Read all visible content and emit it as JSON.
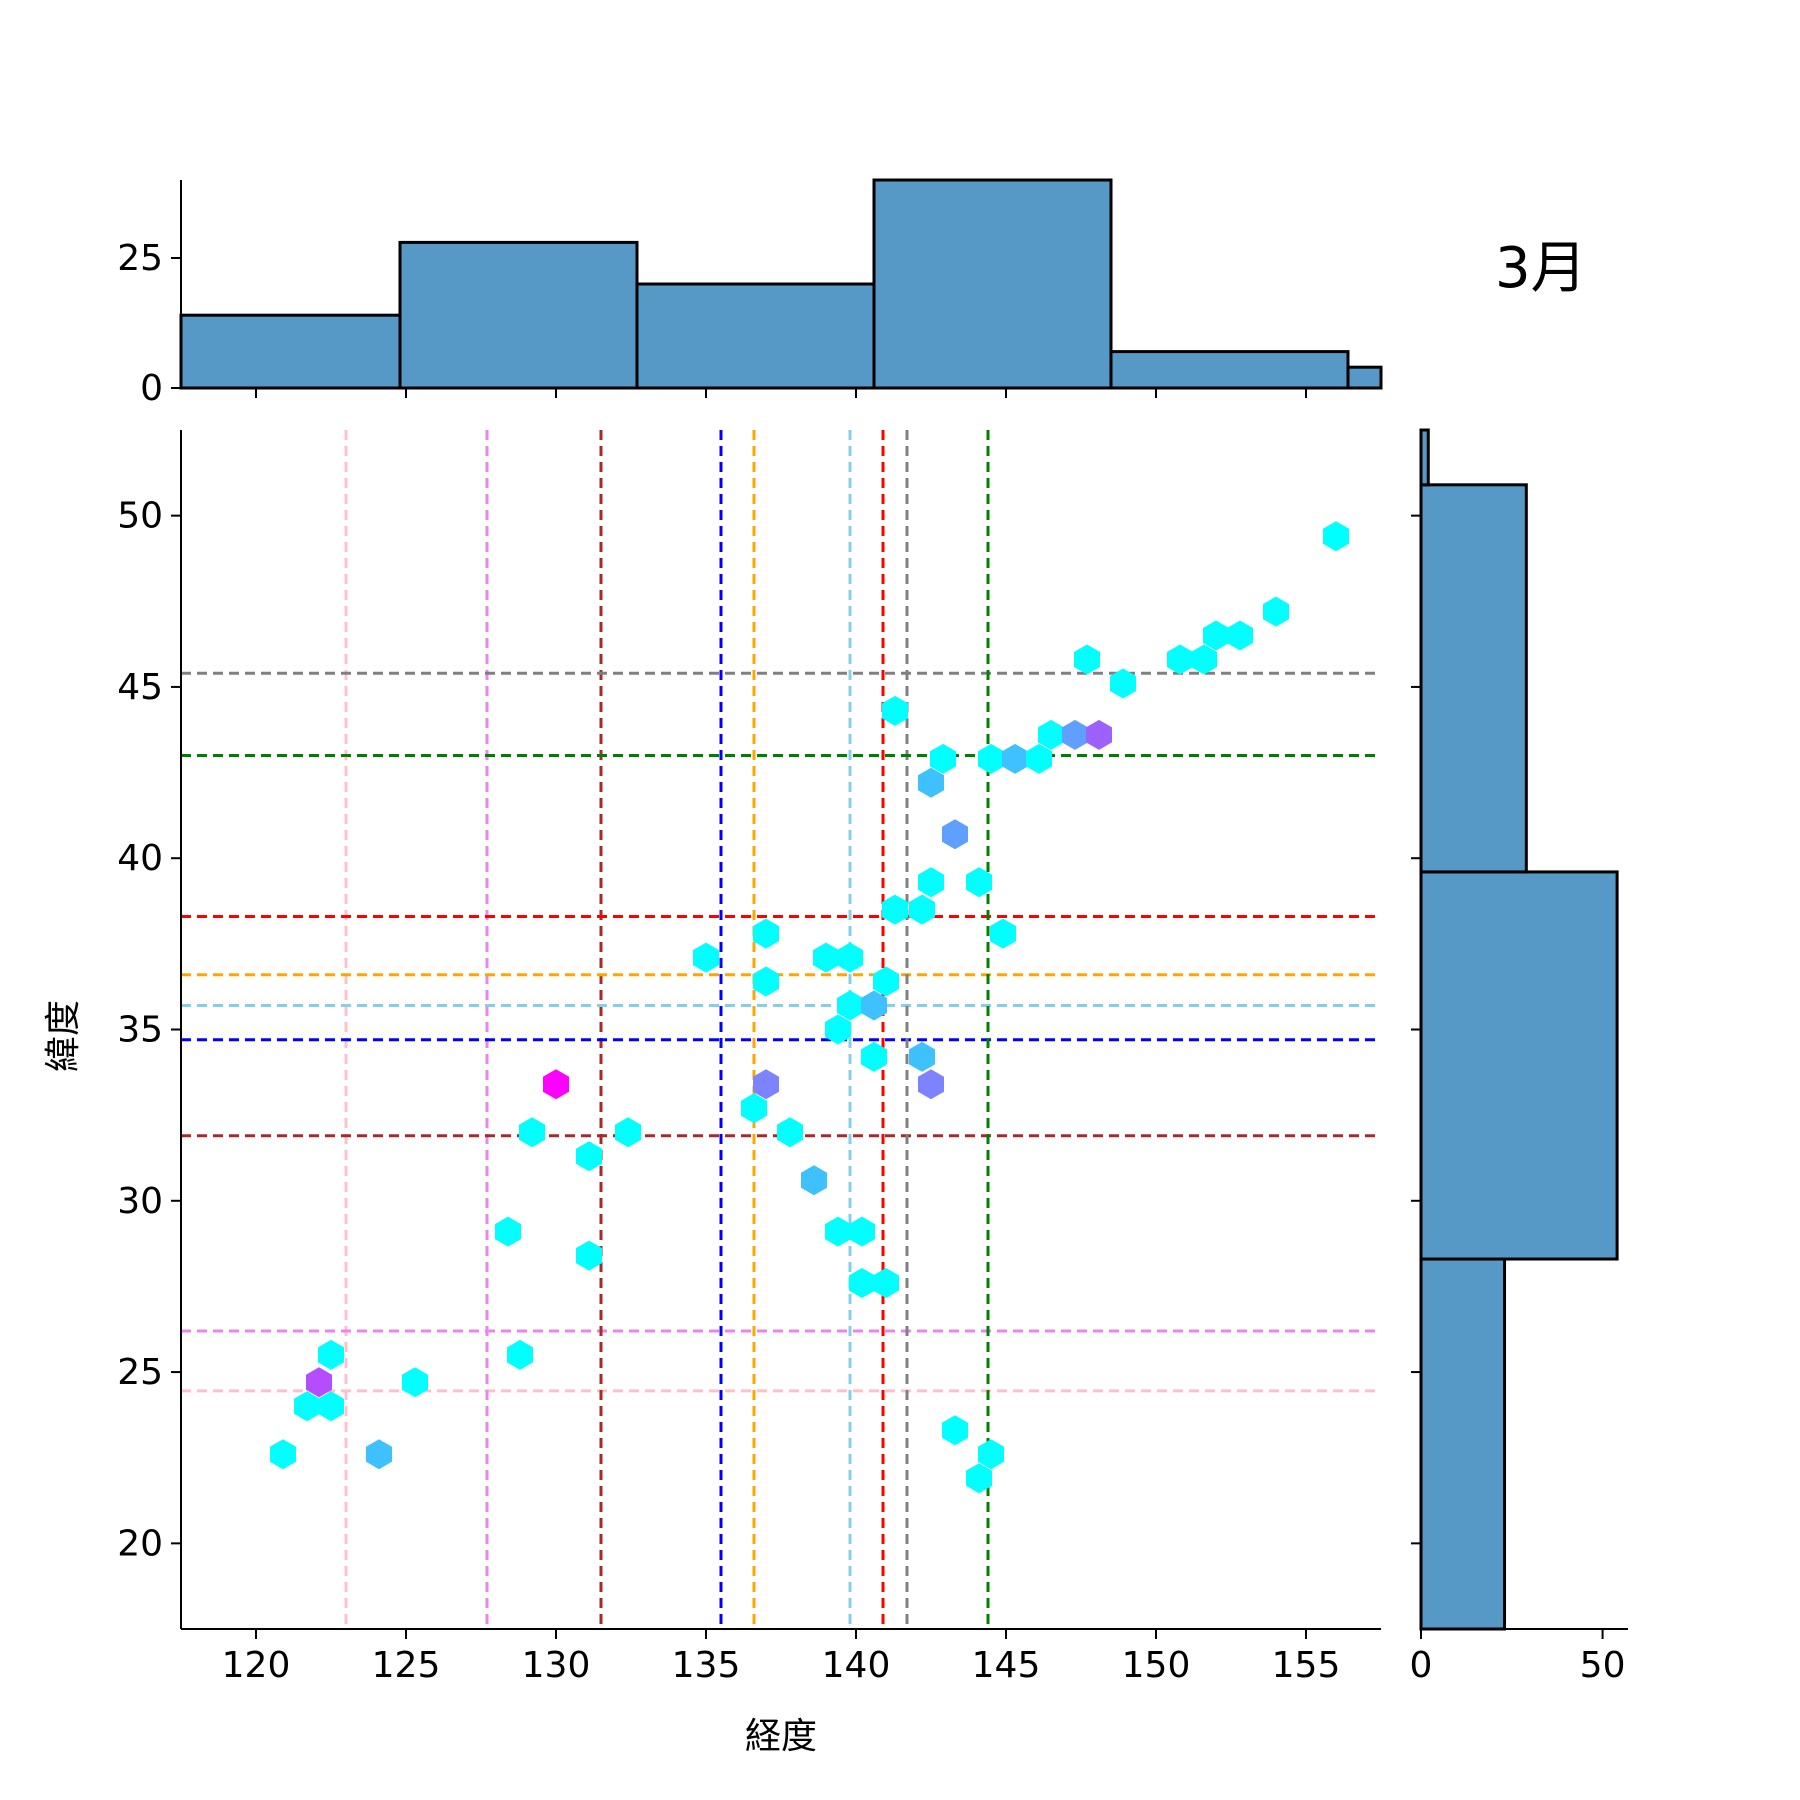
{
  "chart_data": {
    "type": "hexbin-jointplot",
    "annotation": "3月",
    "xlabel": "経度",
    "ylabel": "緯度",
    "xlim": [
      117.5,
      157.5
    ],
    "ylim": [
      17.5,
      52.5
    ],
    "xticks": [
      "120",
      "125",
      "130",
      "135",
      "140",
      "145",
      "150",
      "155"
    ],
    "yticks": [
      "20",
      "25",
      "30",
      "35",
      "40",
      "45",
      "50"
    ],
    "top_hist": {
      "yticks": [
        "0",
        "25"
      ],
      "ylim": [
        0,
        40
      ],
      "bars": [
        {
          "x0": 117.5,
          "x1": 124.8,
          "count": 14
        },
        {
          "x0": 124.8,
          "x1": 132.7,
          "count": 28
        },
        {
          "x0": 132.7,
          "x1": 140.6,
          "count": 20
        },
        {
          "x0": 140.6,
          "x1": 148.5,
          "count": 40
        },
        {
          "x0": 148.5,
          "x1": 156.4,
          "count": 7
        },
        {
          "x0": 156.4,
          "x1": 157.5,
          "count": 4
        }
      ]
    },
    "right_hist": {
      "xticks": [
        "0",
        "50"
      ],
      "xlim": [
        0,
        57
      ],
      "bars": [
        {
          "y0": 17.5,
          "y1": 28.3,
          "count": 23
        },
        {
          "y0": 28.3,
          "y1": 39.6,
          "count": 54
        },
        {
          "y0": 39.6,
          "y1": 50.9,
          "count": 29
        },
        {
          "y0": 50.9,
          "y1": 52.5,
          "count": 2
        }
      ]
    },
    "reference_lines": [
      {
        "lon": 123.0,
        "lat": 24.45,
        "color": "#ffc0cb"
      },
      {
        "lon": 127.7,
        "lat": 26.2,
        "color": "#ee82ee"
      },
      {
        "lon": 131.5,
        "lat": 31.9,
        "color": "#a52a2a"
      },
      {
        "lon": 135.5,
        "lat": 34.7,
        "color": "#0000ff"
      },
      {
        "lon": 136.6,
        "lat": 36.6,
        "color": "#ffa500"
      },
      {
        "lon": 139.8,
        "lat": 35.7,
        "color": "#87ceeb"
      },
      {
        "lon": 140.9,
        "lat": 38.3,
        "color": "#ff0000"
      },
      {
        "lon": 141.7,
        "lat": 45.4,
        "color": "#808080"
      },
      {
        "lon": 144.4,
        "lat": 43.0,
        "color": "#008000"
      }
    ],
    "hexbins": [
      {
        "lon": 120.9,
        "lat": 22.6,
        "color": "#00ffff"
      },
      {
        "lon": 121.7,
        "lat": 24.0,
        "color": "#00ffff"
      },
      {
        "lon": 122.1,
        "lat": 24.7,
        "color": "#b44cff"
      },
      {
        "lon": 122.5,
        "lat": 24.0,
        "color": "#00ffff"
      },
      {
        "lon": 122.5,
        "lat": 25.5,
        "color": "#00ffff"
      },
      {
        "lon": 124.1,
        "lat": 22.6,
        "color": "#3fc0ff"
      },
      {
        "lon": 125.3,
        "lat": 24.7,
        "color": "#00ffff"
      },
      {
        "lon": 128.4,
        "lat": 29.1,
        "color": "#00ffff"
      },
      {
        "lon": 128.8,
        "lat": 25.5,
        "color": "#00ffff"
      },
      {
        "lon": 129.2,
        "lat": 32.0,
        "color": "#00ffff"
      },
      {
        "lon": 130.0,
        "lat": 33.4,
        "color": "#ff00ff"
      },
      {
        "lon": 131.1,
        "lat": 31.3,
        "color": "#00ffff"
      },
      {
        "lon": 131.1,
        "lat": 28.4,
        "color": "#00ffff"
      },
      {
        "lon": 132.4,
        "lat": 32.0,
        "color": "#00ffff"
      },
      {
        "lon": 135.0,
        "lat": 37.1,
        "color": "#00ffff"
      },
      {
        "lon": 136.6,
        "lat": 32.7,
        "color": "#00ffff"
      },
      {
        "lon": 137.0,
        "lat": 37.8,
        "color": "#00ffff"
      },
      {
        "lon": 137.0,
        "lat": 36.4,
        "color": "#00ffff"
      },
      {
        "lon": 137.0,
        "lat": 33.4,
        "color": "#7d82ff"
      },
      {
        "lon": 137.8,
        "lat": 32.0,
        "color": "#00ffff"
      },
      {
        "lon": 138.6,
        "lat": 30.6,
        "color": "#3fc0ff"
      },
      {
        "lon": 139.0,
        "lat": 37.1,
        "color": "#00ffff"
      },
      {
        "lon": 139.4,
        "lat": 35.0,
        "color": "#00ffff"
      },
      {
        "lon": 139.4,
        "lat": 29.1,
        "color": "#00ffff"
      },
      {
        "lon": 139.8,
        "lat": 37.1,
        "color": "#00ffff"
      },
      {
        "lon": 139.8,
        "lat": 35.7,
        "color": "#00ffff"
      },
      {
        "lon": 140.2,
        "lat": 29.1,
        "color": "#00ffff"
      },
      {
        "lon": 140.2,
        "lat": 27.6,
        "color": "#00ffff"
      },
      {
        "lon": 140.6,
        "lat": 35.7,
        "color": "#3fc0ff"
      },
      {
        "lon": 140.6,
        "lat": 34.2,
        "color": "#00ffff"
      },
      {
        "lon": 141.0,
        "lat": 36.4,
        "color": "#00ffff"
      },
      {
        "lon": 141.0,
        "lat": 27.6,
        "color": "#00ffff"
      },
      {
        "lon": 141.3,
        "lat": 44.3,
        "color": "#00ffff"
      },
      {
        "lon": 141.3,
        "lat": 38.5,
        "color": "#00ffff"
      },
      {
        "lon": 142.2,
        "lat": 38.5,
        "color": "#00ffff"
      },
      {
        "lon": 142.2,
        "lat": 34.2,
        "color": "#3fc0ff"
      },
      {
        "lon": 142.5,
        "lat": 42.2,
        "color": "#3fc0ff"
      },
      {
        "lon": 142.5,
        "lat": 39.3,
        "color": "#00ffff"
      },
      {
        "lon": 142.5,
        "lat": 33.4,
        "color": "#7d82ff"
      },
      {
        "lon": 142.9,
        "lat": 42.9,
        "color": "#00ffff"
      },
      {
        "lon": 143.3,
        "lat": 40.7,
        "color": "#5e9fff"
      },
      {
        "lon": 143.3,
        "lat": 23.3,
        "color": "#00ffff"
      },
      {
        "lon": 144.1,
        "lat": 39.3,
        "color": "#00ffff"
      },
      {
        "lon": 144.1,
        "lat": 21.9,
        "color": "#00ffff"
      },
      {
        "lon": 144.5,
        "lat": 42.9,
        "color": "#00ffff"
      },
      {
        "lon": 144.5,
        "lat": 22.6,
        "color": "#00ffff"
      },
      {
        "lon": 144.9,
        "lat": 37.8,
        "color": "#00ffff"
      },
      {
        "lon": 145.3,
        "lat": 42.9,
        "color": "#3fc0ff"
      },
      {
        "lon": 146.1,
        "lat": 42.9,
        "color": "#00ffff"
      },
      {
        "lon": 146.5,
        "lat": 43.6,
        "color": "#00ffff"
      },
      {
        "lon": 147.3,
        "lat": 43.6,
        "color": "#5e9fff"
      },
      {
        "lon": 147.7,
        "lat": 45.8,
        "color": "#00ffff"
      },
      {
        "lon": 148.1,
        "lat": 43.6,
        "color": "#9d61ff"
      },
      {
        "lon": 148.9,
        "lat": 45.1,
        "color": "#00ffff"
      },
      {
        "lon": 150.8,
        "lat": 45.8,
        "color": "#00ffff"
      },
      {
        "lon": 151.6,
        "lat": 45.8,
        "color": "#00ffff"
      },
      {
        "lon": 152.0,
        "lat": 46.5,
        "color": "#00ffff"
      },
      {
        "lon": 152.8,
        "lat": 46.5,
        "color": "#00ffff"
      },
      {
        "lon": 154.0,
        "lat": 47.2,
        "color": "#00ffff"
      },
      {
        "lon": 156.0,
        "lat": 49.4,
        "color": "#00ffff"
      }
    ]
  }
}
